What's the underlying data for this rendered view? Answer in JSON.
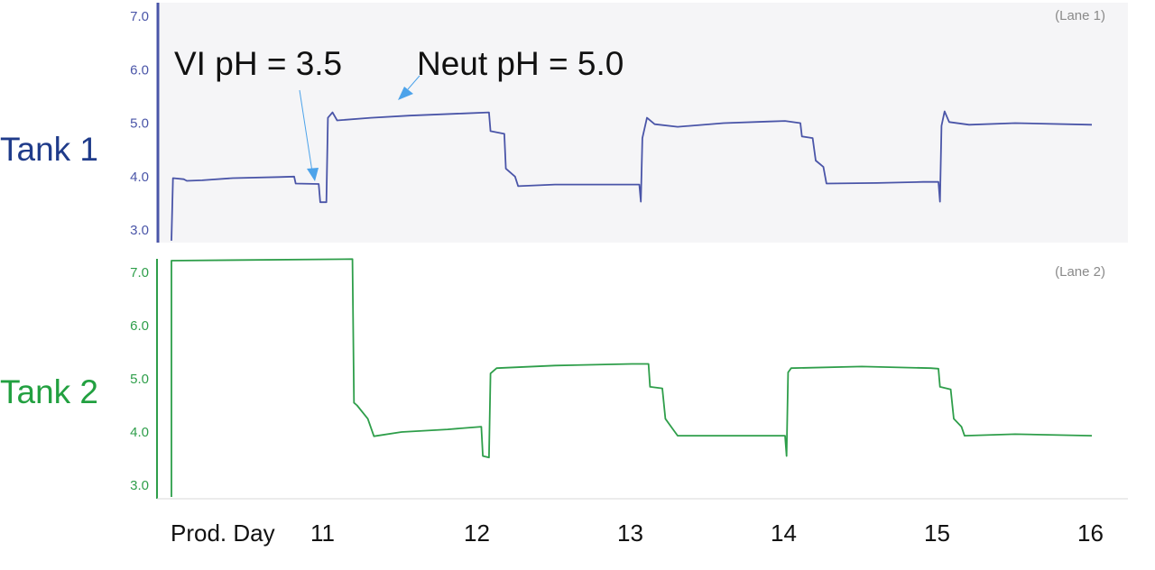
{
  "figure": {
    "lane1_color": "#4a55a8",
    "lane2_color": "#2e9e4a",
    "label1_color": "#1f3b8a",
    "label2_color": "#22a040",
    "panel1_bg": "#f5f5f7",
    "arrow_color": "#4da3ea"
  },
  "xaxis": {
    "prefix": "Prod. Day",
    "ticks": [
      {
        "value": 11,
        "label": "11"
      },
      {
        "value": 12,
        "label": "12"
      },
      {
        "value": 13,
        "label": "13"
      },
      {
        "value": 14,
        "label": "14"
      },
      {
        "value": 15,
        "label": "15"
      },
      {
        "value": 16,
        "label": "16"
      }
    ]
  },
  "annotations": {
    "vi": "VI pH = 3.5",
    "neut": "Neut pH = 5.0"
  },
  "chart_data": [
    {
      "type": "line",
      "name": "Tank 1",
      "lane_label": "(Lane 1)",
      "yticks": [
        "3.0",
        "4.0",
        "5.0",
        "6.0",
        "7.0"
      ],
      "ylim": [
        2.75,
        7.2
      ],
      "xlim": [
        10.0,
        16.0
      ],
      "points": [
        [
          10.0,
          2.8
        ],
        [
          10.01,
          3.97
        ],
        [
          10.08,
          3.95
        ],
        [
          10.1,
          3.92
        ],
        [
          10.2,
          3.93
        ],
        [
          10.4,
          3.97
        ],
        [
          10.7,
          3.99
        ],
        [
          10.8,
          4.0
        ],
        [
          10.81,
          3.87
        ],
        [
          10.96,
          3.86
        ],
        [
          10.97,
          3.52
        ],
        [
          11.01,
          3.52
        ],
        [
          11.02,
          5.1
        ],
        [
          11.05,
          5.2
        ],
        [
          11.08,
          5.05
        ],
        [
          11.3,
          5.1
        ],
        [
          11.55,
          5.14
        ],
        [
          11.9,
          5.18
        ],
        [
          12.07,
          5.2
        ],
        [
          12.08,
          4.85
        ],
        [
          12.17,
          4.8
        ],
        [
          12.18,
          4.15
        ],
        [
          12.24,
          4.0
        ],
        [
          12.26,
          3.82
        ],
        [
          12.5,
          3.85
        ],
        [
          13.05,
          3.85
        ],
        [
          13.06,
          3.53
        ],
        [
          13.07,
          4.72
        ],
        [
          13.1,
          5.1
        ],
        [
          13.15,
          4.98
        ],
        [
          13.3,
          4.93
        ],
        [
          13.6,
          5.0
        ],
        [
          13.9,
          5.03
        ],
        [
          14.0,
          5.04
        ],
        [
          14.1,
          5.0
        ],
        [
          14.11,
          4.75
        ],
        [
          14.18,
          4.72
        ],
        [
          14.2,
          4.3
        ],
        [
          14.25,
          4.18
        ],
        [
          14.27,
          3.87
        ],
        [
          14.6,
          3.88
        ],
        [
          14.9,
          3.9
        ],
        [
          15.0,
          3.9
        ],
        [
          15.01,
          3.53
        ],
        [
          15.02,
          4.95
        ],
        [
          15.04,
          5.22
        ],
        [
          15.07,
          5.02
        ],
        [
          15.2,
          4.97
        ],
        [
          15.5,
          5.0
        ],
        [
          16.0,
          4.97
        ]
      ]
    },
    {
      "type": "line",
      "name": "Tank 2",
      "lane_label": "(Lane 2)",
      "yticks": [
        "3.0",
        "4.0",
        "5.0",
        "6.0",
        "7.0"
      ],
      "ylim": [
        2.75,
        7.3
      ],
      "xlim": [
        10.0,
        16.0
      ],
      "points": [
        [
          10.0,
          2.78
        ],
        [
          10.0,
          7.22
        ],
        [
          11.18,
          7.25
        ],
        [
          11.19,
          4.55
        ],
        [
          11.21,
          4.5
        ],
        [
          11.28,
          4.25
        ],
        [
          11.32,
          3.92
        ],
        [
          11.5,
          4.0
        ],
        [
          11.8,
          4.05
        ],
        [
          12.02,
          4.1
        ],
        [
          12.03,
          3.55
        ],
        [
          12.07,
          3.52
        ],
        [
          12.08,
          5.1
        ],
        [
          12.12,
          5.2
        ],
        [
          12.5,
          5.25
        ],
        [
          13.0,
          5.28
        ],
        [
          13.11,
          5.28
        ],
        [
          13.12,
          4.85
        ],
        [
          13.2,
          4.82
        ],
        [
          13.22,
          4.25
        ],
        [
          13.27,
          4.05
        ],
        [
          13.3,
          3.93
        ],
        [
          13.7,
          3.93
        ],
        [
          14.0,
          3.93
        ],
        [
          14.01,
          3.55
        ],
        [
          14.02,
          5.12
        ],
        [
          14.04,
          5.2
        ],
        [
          14.5,
          5.23
        ],
        [
          14.95,
          5.2
        ],
        [
          15.0,
          5.19
        ],
        [
          15.01,
          4.85
        ],
        [
          15.08,
          4.8
        ],
        [
          15.1,
          4.25
        ],
        [
          15.15,
          4.1
        ],
        [
          15.17,
          3.93
        ],
        [
          15.5,
          3.96
        ],
        [
          16.0,
          3.93
        ]
      ]
    }
  ]
}
